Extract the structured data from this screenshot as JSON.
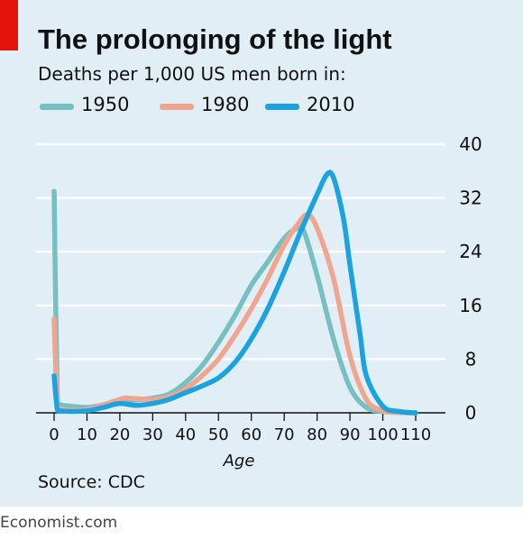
{
  "title": "The prolonging of the light",
  "subtitle": "Deaths per 1,000 US men born in:",
  "source": "Source: CDC",
  "brand": "Economist.com",
  "colors": {
    "background": "#e2eef6",
    "accent_red": "#e3120b",
    "series_1950": "#76c0c1",
    "series_1980": "#f0a58f",
    "series_2010": "#1aa3de"
  },
  "chart_data": {
    "type": "line",
    "title": "The prolonging of the light",
    "subtitle": "Deaths per 1,000 US men born in:",
    "xlabel": "Age",
    "ylabel": "",
    "xlim": [
      0,
      110
    ],
    "ylim": [
      0,
      40
    ],
    "x_ticks": [
      0,
      10,
      20,
      30,
      40,
      50,
      60,
      70,
      80,
      90,
      100,
      110
    ],
    "y_ticks": [
      0,
      8,
      16,
      24,
      32,
      40
    ],
    "grid": "horizontal",
    "y_axis_side": "right",
    "legend_position": "top-left",
    "series": [
      {
        "name": "1950",
        "color": "#76c0c1",
        "x": [
          0,
          1,
          2,
          5,
          10,
          15,
          20,
          25,
          30,
          35,
          40,
          45,
          50,
          55,
          60,
          65,
          70,
          74,
          76,
          80,
          85,
          90,
          95,
          100,
          105,
          110
        ],
        "y": [
          33,
          2,
          1.2,
          1,
          0.8,
          1.2,
          1.8,
          1.9,
          2.2,
          2.8,
          4.5,
          7,
          10.5,
          14.5,
          19,
          22.5,
          26,
          27.5,
          27,
          20.5,
          11,
          3.8,
          0.8,
          0.2,
          0.05,
          0
        ]
      },
      {
        "name": "1980",
        "color": "#f0a58f",
        "x": [
          0,
          1,
          2,
          5,
          10,
          15,
          20,
          22,
          25,
          30,
          35,
          40,
          45,
          50,
          55,
          60,
          65,
          70,
          74,
          77,
          80,
          85,
          90,
          95,
          100,
          105,
          110
        ],
        "y": [
          14,
          1,
          0.6,
          0.4,
          0.5,
          1.2,
          2,
          2.2,
          2.1,
          2,
          2.4,
          3.6,
          5.5,
          8,
          11.5,
          15.5,
          20,
          25,
          28,
          29.5,
          27.5,
          20,
          8.5,
          2,
          0.3,
          0.05,
          0
        ]
      },
      {
        "name": "2010",
        "color": "#1aa3de",
        "x": [
          0,
          1,
          2,
          5,
          10,
          15,
          20,
          25,
          30,
          35,
          40,
          45,
          50,
          55,
          60,
          65,
          70,
          75,
          80,
          83,
          85,
          88,
          90,
          93,
          95,
          100,
          105,
          110
        ],
        "y": [
          5.5,
          0.5,
          0.3,
          0.2,
          0.3,
          0.8,
          1.4,
          1.1,
          1.4,
          2,
          3,
          4,
          5.2,
          7.5,
          11,
          15.5,
          21,
          27,
          32.5,
          35.5,
          35,
          29,
          22,
          12,
          5.5,
          1,
          0.2,
          0
        ]
      }
    ]
  }
}
